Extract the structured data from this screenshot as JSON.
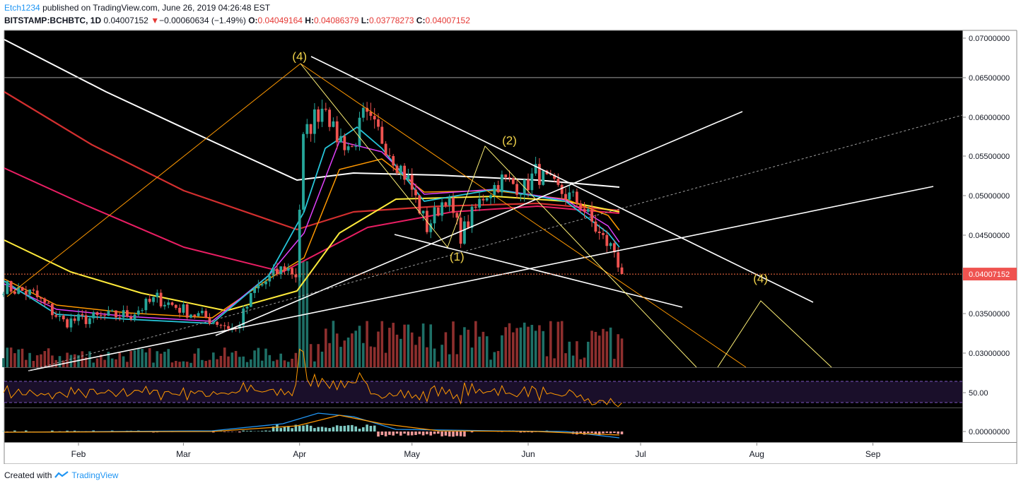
{
  "header": {
    "author": "Etch1234",
    "published": "published on TradingView.com, June 26, 2019 04:26:48 EST",
    "symbol": "BITSTAMP:BCHBTC, 1D",
    "last": "0.04007152",
    "change_arrow": "▼",
    "change": "−0.00060634 (−1.49%)",
    "o_label": "O:",
    "o_value": "0.04049164",
    "h_label": "H:",
    "h_value": "0.04086379",
    "l_label": "L:",
    "l_value": "0.03778273",
    "c_label": "C:",
    "c_value": "0.04007152"
  },
  "footer": {
    "created_with": "Created with",
    "brand": "TradingView"
  },
  "colors": {
    "background": "#000000",
    "up": "#26a69a",
    "down": "#ef5350",
    "label": "#f0d24a",
    "ma_white": "#ffffff",
    "ma_red": "#d32f2f",
    "ma_pink": "#e91e63",
    "ma_yellow": "#ffeb3b",
    "ema_orange": "#ff9800",
    "ema_magenta": "#e040fb",
    "ema_cyan": "#26c6da",
    "rsi": "#ff9800",
    "macd": "#2196f3",
    "signal": "#ff9800",
    "price_line": "#ff7043"
  },
  "chart_data": {
    "type": "candlestick",
    "x": [
      "Feb",
      "Mar",
      "Apr",
      "May",
      "Jun",
      "Jul",
      "Aug",
      "Sep"
    ],
    "y_ticks": [
      "0.07000000",
      "0.06500000",
      "0.06000000",
      "0.05500000",
      "0.05000000",
      "0.04500000",
      "0.03500000",
      "0.03000000"
    ],
    "ylim": [
      0.028,
      0.071
    ],
    "last_price_label": "0.04007152",
    "horizontal_level": 0.065,
    "close_path": [
      [
        "2019-01-12",
        0.0385
      ],
      [
        "2019-01-20",
        0.0375
      ],
      [
        "2019-01-28",
        0.034
      ],
      [
        "2019-02-05",
        0.0345
      ],
      [
        "2019-02-15",
        0.035
      ],
      [
        "2019-02-22",
        0.037
      ],
      [
        "2019-03-01",
        0.0355
      ],
      [
        "2019-03-10",
        0.034
      ],
      [
        "2019-03-15",
        0.033
      ],
      [
        "2019-03-20",
        0.038
      ],
      [
        "2019-03-24",
        0.0395
      ],
      [
        "2019-03-28",
        0.041
      ],
      [
        "2019-03-31",
        0.04
      ],
      [
        "2019-04-02",
        0.057
      ],
      [
        "2019-04-05",
        0.06
      ],
      [
        "2019-04-08",
        0.062
      ],
      [
        "2019-04-10",
        0.058
      ],
      [
        "2019-04-15",
        0.056
      ],
      [
        "2019-04-18",
        0.06
      ],
      [
        "2019-04-22",
        0.058
      ],
      [
        "2019-04-26",
        0.055
      ],
      [
        "2019-04-30",
        0.052
      ],
      [
        "2019-05-05",
        0.046
      ],
      [
        "2019-05-10",
        0.05
      ],
      [
        "2019-05-14",
        0.045
      ],
      [
        "2019-05-20",
        0.05
      ],
      [
        "2019-05-25",
        0.052
      ],
      [
        "2019-05-31",
        0.051
      ],
      [
        "2019-06-03",
        0.053
      ],
      [
        "2019-06-08",
        0.051
      ],
      [
        "2019-06-15",
        0.049
      ],
      [
        "2019-06-20",
        0.045
      ],
      [
        "2019-06-24",
        0.043
      ],
      [
        "2019-06-26",
        0.04007152
      ]
    ],
    "wave_labels": [
      {
        "text": "(4)",
        "date": "2019-04-01",
        "y": 0.0672
      },
      {
        "text": "(2)",
        "date": "2019-05-27",
        "y": 0.0565
      },
      {
        "text": "(1)",
        "date": "2019-05-13",
        "y": 0.0418
      },
      {
        "text": "(4)",
        "date": "2019-08-02",
        "y": 0.039
      }
    ],
    "rsi": {
      "label": "50.00",
      "upper": 70,
      "lower": 30
    },
    "macd": {
      "label": "0.00000000"
    }
  }
}
